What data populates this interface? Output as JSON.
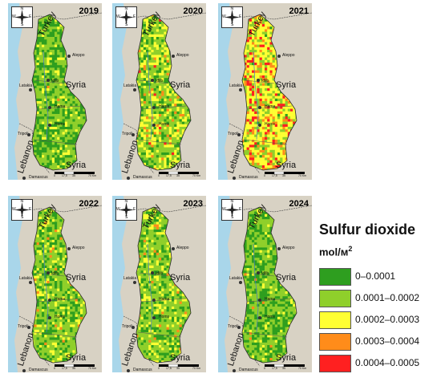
{
  "panels": [
    {
      "year": "2019",
      "palette": "low"
    },
    {
      "year": "2020",
      "palette": "moderate"
    },
    {
      "year": "2021",
      "palette": "high"
    },
    {
      "year": "2022",
      "palette": "low-mid"
    },
    {
      "year": "2023",
      "palette": "low-mid"
    },
    {
      "year": "2024",
      "palette": "low"
    }
  ],
  "place_labels": {
    "turkey": "Turkey",
    "syria": "Syria",
    "lebanon": "Lebanon",
    "aleppo": "Aleppo",
    "idlib": "Idlib",
    "latakia": "Latakia",
    "hama": "Hama",
    "homs": "Homs",
    "tripoli": "Tripoli",
    "damascus": "Damascus"
  },
  "compass": {
    "n": "N",
    "s": "S",
    "e": "E",
    "w": "W"
  },
  "scalebar": {
    "ticks": [
      "0",
      "17,5",
      "35",
      "70 Km"
    ]
  },
  "legend": {
    "title": "Sulfur dioxide",
    "unit": "mol/м",
    "unit_sup": "2",
    "items": [
      {
        "label": "0–0.0001",
        "color": "#2e9e1f"
      },
      {
        "label": "0.0001–0.0002",
        "color": "#8fcf2b"
      },
      {
        "label": "0.0002–0.0003",
        "color": "#ffff33"
      },
      {
        "label": "0.0003–0.0004",
        "color": "#ff8c1a"
      },
      {
        "label": "0.0004–0.0005",
        "color": "#ff2020"
      }
    ]
  },
  "colors": {
    "sea": "#a9d6ea",
    "land_outside": "#d8d2c4",
    "border": "#444444"
  }
}
